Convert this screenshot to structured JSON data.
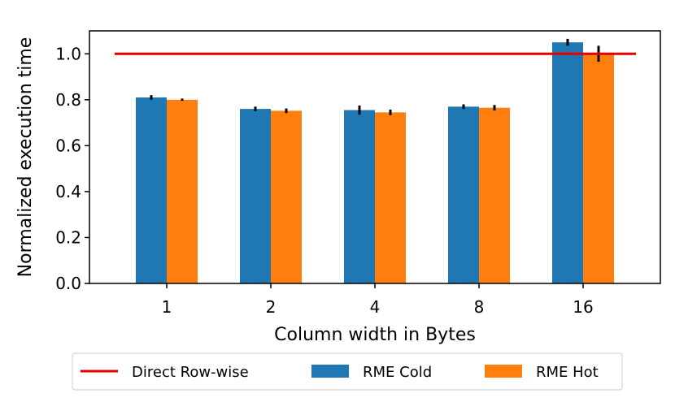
{
  "chart_data": {
    "type": "bar",
    "title": "",
    "xlabel": "Column width in Bytes",
    "ylabel": "Normalized execution time",
    "categories": [
      "1",
      "2",
      "4",
      "8",
      "16"
    ],
    "ylim": [
      0,
      1.1
    ],
    "yticks": [
      "0.0",
      "0.2",
      "0.4",
      "0.6",
      "0.8",
      "1.0"
    ],
    "grid": false,
    "legend_position": "bottom-center",
    "series": [
      {
        "name": "RME Cold",
        "type": "bar",
        "color": "#1f77b4",
        "values": [
          0.81,
          0.76,
          0.755,
          0.77,
          1.05
        ],
        "errors": [
          0.01,
          0.01,
          0.02,
          0.01,
          0.015
        ]
      },
      {
        "name": "RME Hot",
        "type": "bar",
        "color": "#ff7f0e",
        "values": [
          0.8,
          0.752,
          0.745,
          0.765,
          1.0
        ],
        "errors": [
          0.005,
          0.01,
          0.012,
          0.012,
          0.035
        ]
      },
      {
        "name": "Direct Row-wise",
        "type": "line",
        "color": "#e50000",
        "value": 1.0
      }
    ]
  }
}
